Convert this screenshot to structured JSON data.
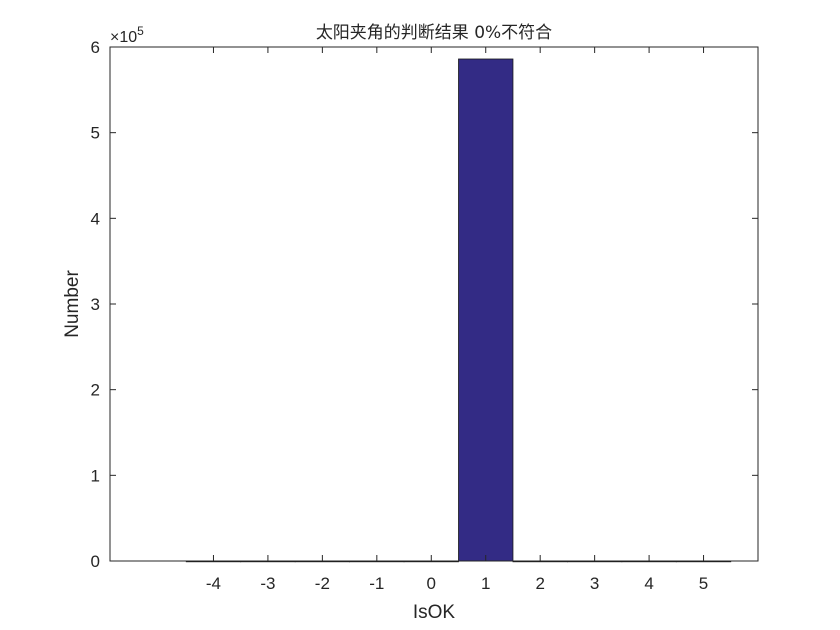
{
  "chart_data": {
    "type": "bar",
    "title": "太阳夹角的判断结果 0%不符合",
    "xlabel": "IsOK",
    "ylabel": "Number",
    "y_exponent_label": "×10",
    "y_exponent_power": "5",
    "y_scale_factor": 100000,
    "x": [
      -4,
      -3,
      -2,
      -1,
      0,
      1,
      2,
      3,
      4,
      5
    ],
    "x_tick_labels": [
      "-4",
      "-3",
      "-2",
      "-1",
      "0",
      "1",
      "2",
      "3",
      "4",
      "5"
    ],
    "values": [
      0,
      0,
      0,
      0,
      0,
      586000,
      0,
      0,
      0,
      0
    ],
    "xlim": [
      -5.9,
      6
    ],
    "ylim": [
      0,
      600000
    ],
    "y_ticks": [
      0,
      100000,
      200000,
      300000,
      400000,
      500000,
      600000
    ],
    "y_tick_labels": [
      "0",
      "1",
      "2",
      "3",
      "4",
      "5",
      "6"
    ],
    "bar_color": "#332b85",
    "grid": false,
    "legend": "none"
  }
}
